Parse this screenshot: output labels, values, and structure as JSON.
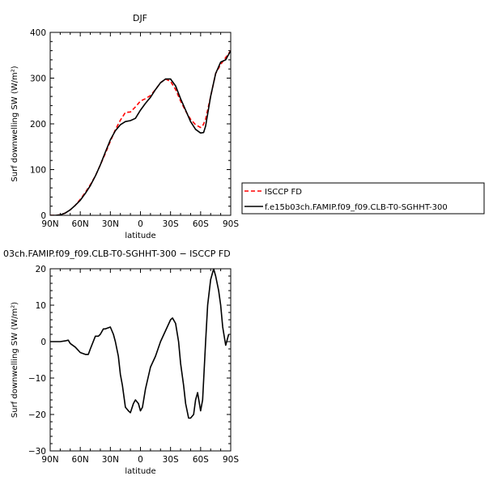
{
  "chart_data": [
    {
      "type": "line",
      "title": "DJF",
      "xlabel": "latitude",
      "ylabel": "Surf downwelling SW (W/m²)",
      "xlim": [
        90,
        -90
      ],
      "ylim": [
        0,
        400
      ],
      "xticks": [
        "90N",
        "60N",
        "30N",
        "0",
        "30S",
        "60S",
        "90S"
      ],
      "yticks": [
        "0",
        "100",
        "200",
        "300",
        "400"
      ],
      "legend_position": "right",
      "series": [
        {
          "name": "ISCCP FD",
          "color": "#ff0000",
          "dash": "dashed",
          "x": [
            90,
            85,
            80,
            75,
            70,
            65,
            60,
            55,
            50,
            45,
            40,
            35,
            30,
            25,
            20,
            15,
            10,
            5,
            0,
            -5,
            -10,
            -15,
            -20,
            -25,
            -30,
            -35,
            -40,
            -45,
            -50,
            -55,
            -60,
            -62,
            -65,
            -70,
            -75,
            -80,
            -85,
            -90
          ],
          "y": [
            0,
            0,
            1,
            5,
            12,
            22,
            35,
            50,
            67,
            86,
            110,
            135,
            162,
            187,
            208,
            225,
            226,
            237,
            250,
            255,
            262,
            275,
            290,
            298,
            293,
            275,
            250,
            228,
            210,
            198,
            192,
            195,
            210,
            260,
            310,
            330,
            345,
            360
          ]
        },
        {
          "name": "f.e15b03ch.FAMIP.f09_f09.CLB-T0-SGHHT-300",
          "color": "#000000",
          "dash": "solid",
          "x": [
            90,
            85,
            80,
            75,
            70,
            65,
            60,
            55,
            50,
            45,
            40,
            35,
            30,
            25,
            20,
            15,
            10,
            5,
            0,
            -5,
            -10,
            -15,
            -20,
            -25,
            -30,
            -35,
            -40,
            -45,
            -50,
            -55,
            -60,
            -63,
            -65,
            -70,
            -75,
            -80,
            -85,
            -90
          ],
          "y": [
            0,
            0,
            1,
            5,
            12,
            22,
            33,
            48,
            65,
            86,
            110,
            138,
            165,
            185,
            198,
            205,
            207,
            212,
            230,
            245,
            258,
            275,
            290,
            298,
            298,
            283,
            255,
            230,
            205,
            188,
            180,
            181,
            195,
            260,
            310,
            335,
            340,
            360
          ]
        }
      ]
    },
    {
      "type": "line",
      "title": "03ch.FAMIP.f09_f09.CLB-T0-SGHHT-300 − ISCCP FD",
      "xlabel": "latitude",
      "ylabel": "Surf downwelling SW (W/m²)",
      "xlim": [
        90,
        -90
      ],
      "ylim": [
        -30,
        20
      ],
      "xticks": [
        "90N",
        "60N",
        "30N",
        "0",
        "30S",
        "60S",
        "90S"
      ],
      "yticks": [
        "−30",
        "−20",
        "−10",
        "0",
        "10",
        "20"
      ],
      "series": [
        {
          "color": "#000000",
          "dash": "solid",
          "x": [
            90,
            85,
            80,
            75,
            72,
            70,
            65,
            60,
            55,
            52,
            50,
            45,
            42,
            40,
            37,
            35,
            30,
            27,
            25,
            22,
            20,
            18,
            15,
            12,
            10,
            7,
            5,
            2,
            0,
            -2,
            -5,
            -10,
            -15,
            -20,
            -25,
            -30,
            -32,
            -35,
            -38,
            -40,
            -43,
            -45,
            -48,
            -50,
            -53,
            -55,
            -57,
            -60,
            -62,
            -65,
            -67,
            -70,
            -73,
            -75,
            -78,
            -80,
            -82,
            -85,
            -88
          ],
          "y": [
            0,
            0,
            0,
            0.2,
            0.4,
            -0.5,
            -1.5,
            -3,
            -3.5,
            -3.5,
            -2,
            1.5,
            1.5,
            2,
            3.5,
            3.5,
            4,
            2,
            0,
            -4,
            -9,
            -12,
            -18,
            -19,
            -19.5,
            -17,
            -16,
            -17,
            -19,
            -18,
            -13,
            -7,
            -4,
            0,
            3,
            6,
            6.5,
            5,
            0,
            -6,
            -12,
            -17,
            -21,
            -21,
            -20,
            -16,
            -14,
            -19,
            -16,
            0,
            10,
            17,
            20,
            18,
            14,
            10,
            4,
            -1,
            2
          ]
        }
      ]
    }
  ]
}
